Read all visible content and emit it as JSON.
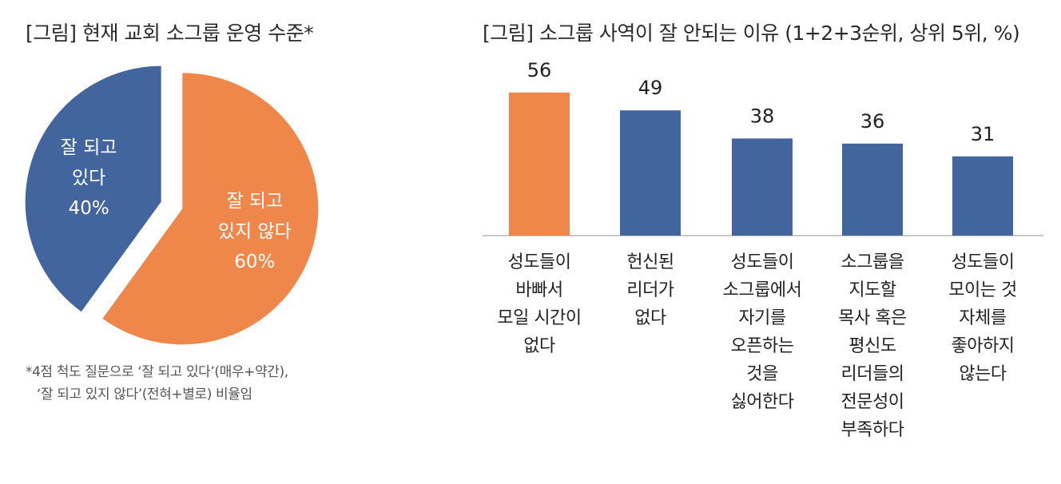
{
  "chart_data": [
    {
      "type": "pie",
      "title": "[그림] 현재 교회 소그룹 운영 수준*",
      "slices": [
        {
          "label_lines": [
            "잘 되고",
            "있다"
          ],
          "value": 40,
          "value_label": "40%",
          "color": "#42659e"
        },
        {
          "label_lines": [
            "잘 되고",
            "있지 않다"
          ],
          "value": 60,
          "value_label": "60%",
          "color": "#ef874b"
        }
      ],
      "footnote_lines": [
        "*4점 척도 질문으로 ‘잘 되고 있다’(매우+약간),",
        "‘잘 되고 있지 않다’(전혀+별로) 비율임"
      ]
    },
    {
      "type": "bar",
      "title": "[그림] 소그룹 사역이 잘 안되는 이유 (1+2+3순위, 상위 5위, %)",
      "categories": [
        [
          "성도들이",
          "바빠서",
          "모일 시간이",
          "없다"
        ],
        [
          "헌신된",
          "리더가",
          "없다"
        ],
        [
          "성도들이",
          "소그룹에서",
          "자기를",
          "오픈하는",
          "것을",
          "싫어한다"
        ],
        [
          "소그룹을",
          "지도할",
          "목사 혹은",
          "평신도",
          "리더들의",
          "전문성이",
          "부족하다"
        ],
        [
          "성도들이",
          "모이는 것",
          "자체를",
          "좋아하지",
          "않는다"
        ]
      ],
      "values": [
        56,
        49,
        38,
        36,
        31
      ],
      "colors": [
        "#ef874b",
        "#42659e",
        "#42659e",
        "#42659e",
        "#42659e"
      ],
      "ylim": [
        0,
        60
      ]
    }
  ]
}
